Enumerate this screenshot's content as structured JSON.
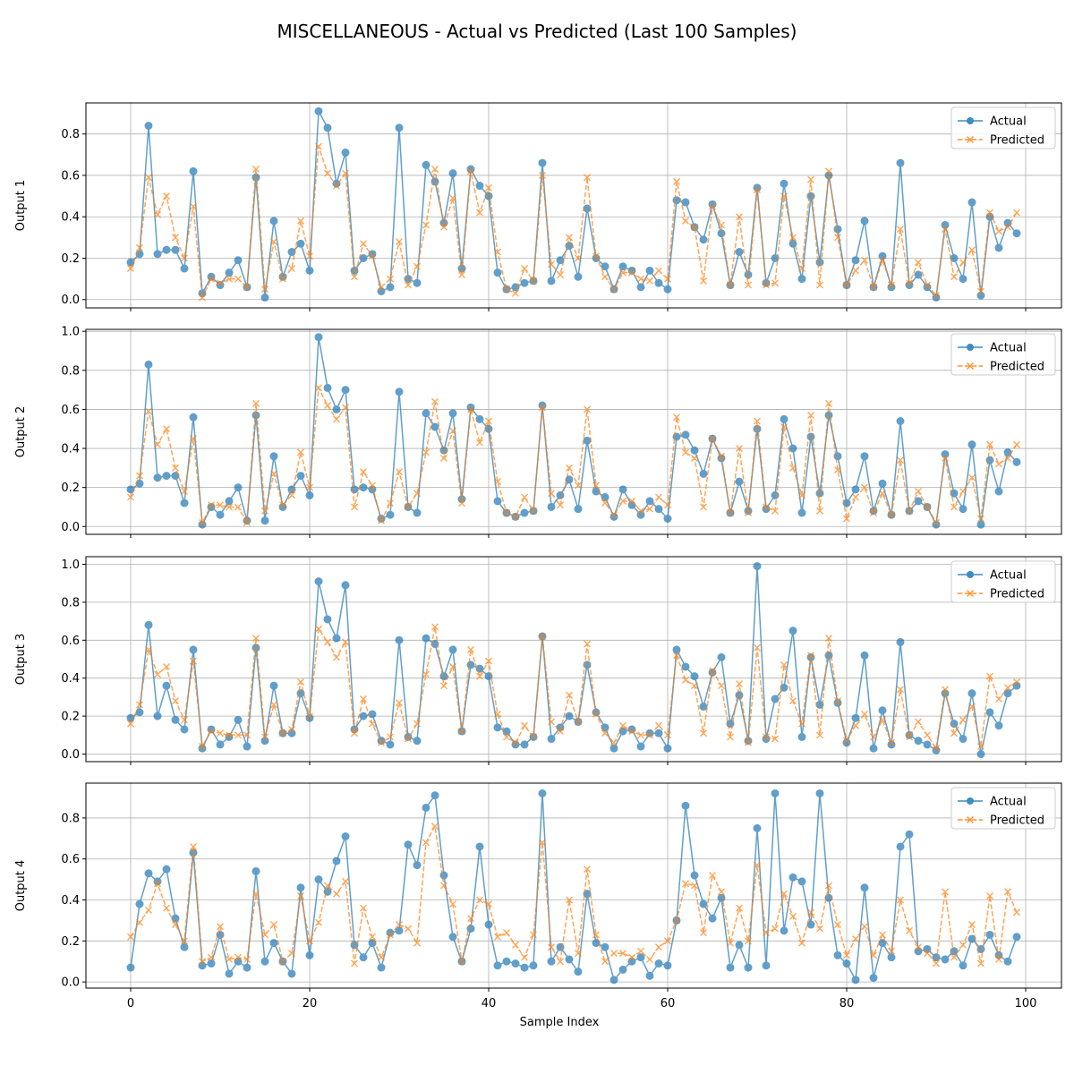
{
  "figure": {
    "title": "MISCELLANEOUS - Actual vs Predicted (Last 100 Samples)",
    "xlabel": "Sample Index",
    "colors": {
      "actual": "#1f77b4",
      "predicted": "#ff7f0e"
    }
  },
  "chart_data": [
    {
      "type": "line",
      "ylabel": "Output 1",
      "xlim": [
        -5,
        104
      ],
      "ylim": [
        -0.04,
        0.95
      ],
      "xticks": [
        0,
        20,
        40,
        60,
        80,
        100
      ],
      "yticks": [
        0.0,
        0.2,
        0.4,
        0.6,
        0.8
      ],
      "yticklabels": [
        "0.0",
        "0.2",
        "0.4",
        "0.6",
        "0.8"
      ],
      "grid": true,
      "legend": "top-right",
      "series": [
        {
          "name": "Actual",
          "marker": "circle",
          "line": "solid",
          "values": [
            0.18,
            0.22,
            0.84,
            0.22,
            0.24,
            0.24,
            0.15,
            0.62,
            0.03,
            0.11,
            0.07,
            0.13,
            0.19,
            0.06,
            0.59,
            0.01,
            0.38,
            0.11,
            0.23,
            0.27,
            0.14,
            0.91,
            0.83,
            0.56,
            0.71,
            0.14,
            0.2,
            0.22,
            0.04,
            0.06,
            0.83,
            0.1,
            0.08,
            0.65,
            0.57,
            0.37,
            0.61,
            0.15,
            0.63,
            0.55,
            0.5,
            0.13,
            0.05,
            0.06,
            0.08,
            0.09,
            0.66,
            0.09,
            0.19,
            0.26,
            0.11,
            0.44,
            0.2,
            0.16,
            0.05,
            0.16,
            0.14,
            0.06,
            0.14,
            0.08,
            0.05,
            0.48,
            0.47,
            0.35,
            0.29,
            0.46,
            0.32,
            0.07,
            0.23,
            0.12,
            0.54,
            0.08,
            0.2,
            0.56,
            0.27,
            0.1,
            0.5,
            0.18,
            0.6,
            0.34,
            0.07,
            0.19,
            0.38,
            0.06,
            0.21,
            0.06,
            0.66,
            0.07,
            0.12,
            0.06,
            0.01,
            0.36,
            0.2,
            0.1,
            0.47,
            0.02,
            0.4,
            0.25,
            0.37,
            0.32
          ]
        },
        {
          "name": "Predicted",
          "marker": "x",
          "line": "dashed",
          "values": [
            0.15,
            0.25,
            0.59,
            0.41,
            0.5,
            0.3,
            0.2,
            0.45,
            0.01,
            0.1,
            0.08,
            0.1,
            0.1,
            0.06,
            0.63,
            0.05,
            0.28,
            0.1,
            0.15,
            0.38,
            0.21,
            0.74,
            0.61,
            0.55,
            0.61,
            0.11,
            0.27,
            0.21,
            0.06,
            0.1,
            0.28,
            0.07,
            0.16,
            0.36,
            0.63,
            0.35,
            0.49,
            0.12,
            0.62,
            0.42,
            0.54,
            0.23,
            0.05,
            0.03,
            0.15,
            0.09,
            0.6,
            0.17,
            0.12,
            0.3,
            0.2,
            0.59,
            0.21,
            0.11,
            0.05,
            0.13,
            0.13,
            0.1,
            0.09,
            0.14,
            0.1,
            0.57,
            0.38,
            0.35,
            0.09,
            0.45,
            0.36,
            0.07,
            0.4,
            0.07,
            0.53,
            0.07,
            0.08,
            0.5,
            0.3,
            0.15,
            0.58,
            0.07,
            0.62,
            0.3,
            0.07,
            0.14,
            0.19,
            0.06,
            0.19,
            0.07,
            0.34,
            0.08,
            0.18,
            0.07,
            0.02,
            0.34,
            0.11,
            0.18,
            0.24,
            0.04,
            0.42,
            0.33,
            0.35,
            0.42
          ]
        }
      ]
    },
    {
      "type": "line",
      "ylabel": "Output 2",
      "xlim": [
        -5,
        104
      ],
      "ylim": [
        -0.04,
        1.01
      ],
      "xticks": [
        0,
        20,
        40,
        60,
        80,
        100
      ],
      "yticks": [
        0.0,
        0.2,
        0.4,
        0.6,
        0.8,
        1.0
      ],
      "yticklabels": [
        "0.0",
        "0.2",
        "0.4",
        "0.6",
        "0.8",
        "1.0"
      ],
      "grid": true,
      "legend": "top-right",
      "series": [
        {
          "name": "Actual",
          "marker": "circle",
          "line": "solid",
          "values": [
            0.19,
            0.22,
            0.83,
            0.25,
            0.26,
            0.26,
            0.12,
            0.56,
            0.01,
            0.1,
            0.06,
            0.13,
            0.2,
            0.03,
            0.57,
            0.03,
            0.36,
            0.1,
            0.19,
            0.26,
            0.16,
            0.97,
            0.71,
            0.6,
            0.7,
            0.19,
            0.2,
            0.19,
            0.04,
            0.06,
            0.69,
            0.1,
            0.07,
            0.58,
            0.51,
            0.39,
            0.58,
            0.14,
            0.61,
            0.55,
            0.5,
            0.13,
            0.07,
            0.05,
            0.07,
            0.08,
            0.62,
            0.1,
            0.16,
            0.24,
            0.09,
            0.44,
            0.18,
            0.15,
            0.05,
            0.19,
            0.11,
            0.06,
            0.13,
            0.09,
            0.04,
            0.46,
            0.47,
            0.39,
            0.27,
            0.45,
            0.35,
            0.07,
            0.23,
            0.08,
            0.5,
            0.09,
            0.16,
            0.55,
            0.4,
            0.07,
            0.46,
            0.17,
            0.57,
            0.36,
            0.12,
            0.19,
            0.36,
            0.08,
            0.22,
            0.06,
            0.54,
            0.08,
            0.13,
            0.1,
            0.01,
            0.37,
            0.17,
            0.09,
            0.42,
            0.01,
            0.34,
            0.18,
            0.38,
            0.33
          ]
        },
        {
          "name": "Predicted",
          "marker": "x",
          "line": "dashed",
          "values": [
            0.15,
            0.26,
            0.59,
            0.42,
            0.5,
            0.3,
            0.18,
            0.45,
            0.02,
            0.11,
            0.11,
            0.1,
            0.1,
            0.02,
            0.63,
            0.08,
            0.27,
            0.11,
            0.16,
            0.38,
            0.2,
            0.71,
            0.62,
            0.55,
            0.61,
            0.1,
            0.28,
            0.21,
            0.03,
            0.12,
            0.28,
            0.1,
            0.17,
            0.38,
            0.64,
            0.35,
            0.49,
            0.12,
            0.6,
            0.43,
            0.54,
            0.23,
            0.07,
            0.05,
            0.15,
            0.08,
            0.61,
            0.17,
            0.11,
            0.3,
            0.21,
            0.6,
            0.21,
            0.12,
            0.06,
            0.13,
            0.13,
            0.08,
            0.09,
            0.15,
            0.11,
            0.56,
            0.38,
            0.35,
            0.1,
            0.45,
            0.36,
            0.07,
            0.4,
            0.07,
            0.54,
            0.1,
            0.08,
            0.51,
            0.3,
            0.16,
            0.57,
            0.08,
            0.63,
            0.29,
            0.04,
            0.15,
            0.2,
            0.07,
            0.17,
            0.06,
            0.34,
            0.08,
            0.18,
            0.1,
            0.02,
            0.35,
            0.1,
            0.18,
            0.25,
            0.04,
            0.42,
            0.32,
            0.35,
            0.42
          ]
        }
      ]
    },
    {
      "type": "line",
      "ylabel": "Output 3",
      "xlim": [
        -5,
        104
      ],
      "ylim": [
        -0.04,
        1.04
      ],
      "xticks": [
        0,
        20,
        40,
        60,
        80,
        100
      ],
      "yticks": [
        0.0,
        0.2,
        0.4,
        0.6,
        0.8,
        1.0
      ],
      "yticklabels": [
        "0.0",
        "0.2",
        "0.4",
        "0.6",
        "0.8",
        "1.0"
      ],
      "grid": true,
      "legend": "top-right",
      "series": [
        {
          "name": "Actual",
          "marker": "circle",
          "line": "solid",
          "values": [
            0.19,
            0.22,
            0.68,
            0.2,
            0.36,
            0.18,
            0.13,
            0.55,
            0.03,
            0.13,
            0.05,
            0.09,
            0.18,
            0.04,
            0.56,
            0.07,
            0.36,
            0.11,
            0.11,
            0.32,
            0.19,
            0.91,
            0.71,
            0.61,
            0.89,
            0.13,
            0.2,
            0.21,
            0.07,
            0.05,
            0.6,
            0.09,
            0.07,
            0.61,
            0.58,
            0.41,
            0.55,
            0.12,
            0.47,
            0.45,
            0.41,
            0.14,
            0.12,
            0.05,
            0.05,
            0.09,
            0.62,
            0.08,
            0.14,
            0.2,
            0.17,
            0.47,
            0.22,
            0.14,
            0.03,
            0.12,
            0.13,
            0.04,
            0.11,
            0.11,
            0.03,
            0.55,
            0.46,
            0.41,
            0.25,
            0.43,
            0.51,
            0.16,
            0.31,
            0.07,
            0.99,
            0.08,
            0.29,
            0.35,
            0.65,
            0.09,
            0.51,
            0.26,
            0.52,
            0.27,
            0.06,
            0.19,
            0.52,
            0.03,
            0.23,
            0.05,
            0.59,
            0.1,
            0.07,
            0.05,
            0.02,
            0.32,
            0.16,
            0.08,
            0.32,
            0.0,
            0.22,
            0.15,
            0.32,
            0.36
          ]
        },
        {
          "name": "Predicted",
          "marker": "x",
          "line": "dashed",
          "values": [
            0.16,
            0.26,
            0.55,
            0.42,
            0.46,
            0.28,
            0.18,
            0.49,
            0.04,
            0.12,
            0.11,
            0.1,
            0.1,
            0.1,
            0.61,
            0.09,
            0.26,
            0.11,
            0.13,
            0.38,
            0.2,
            0.66,
            0.59,
            0.51,
            0.59,
            0.11,
            0.29,
            0.16,
            0.06,
            0.09,
            0.27,
            0.08,
            0.16,
            0.42,
            0.67,
            0.36,
            0.46,
            0.12,
            0.55,
            0.41,
            0.49,
            0.21,
            0.09,
            0.06,
            0.15,
            0.09,
            0.62,
            0.17,
            0.12,
            0.31,
            0.17,
            0.58,
            0.21,
            0.11,
            0.06,
            0.15,
            0.12,
            0.1,
            0.1,
            0.15,
            0.1,
            0.52,
            0.39,
            0.36,
            0.11,
            0.44,
            0.36,
            0.09,
            0.37,
            0.06,
            0.56,
            0.09,
            0.08,
            0.47,
            0.28,
            0.16,
            0.52,
            0.1,
            0.61,
            0.28,
            0.07,
            0.15,
            0.21,
            0.09,
            0.18,
            0.06,
            0.34,
            0.09,
            0.17,
            0.1,
            0.03,
            0.34,
            0.11,
            0.18,
            0.25,
            0.04,
            0.41,
            0.29,
            0.35,
            0.38
          ]
        }
      ]
    },
    {
      "type": "line",
      "ylabel": "Output 4",
      "xlim": [
        -5,
        104
      ],
      "ylim": [
        -0.03,
        0.97
      ],
      "xticks": [
        0,
        20,
        40,
        60,
        80,
        100
      ],
      "yticks": [
        0.0,
        0.2,
        0.4,
        0.6,
        0.8
      ],
      "yticklabels": [
        "0.0",
        "0.2",
        "0.4",
        "0.6",
        "0.8"
      ],
      "grid": true,
      "legend": "top-right",
      "series": [
        {
          "name": "Actual",
          "marker": "circle",
          "line": "solid",
          "values": [
            0.07,
            0.38,
            0.53,
            0.49,
            0.55,
            0.31,
            0.17,
            0.63,
            0.08,
            0.09,
            0.23,
            0.04,
            0.1,
            0.07,
            0.54,
            0.1,
            0.19,
            0.1,
            0.04,
            0.46,
            0.13,
            0.5,
            0.44,
            0.59,
            0.71,
            0.18,
            0.12,
            0.19,
            0.07,
            0.24,
            0.25,
            0.67,
            0.57,
            0.85,
            0.91,
            0.52,
            0.22,
            0.1,
            0.26,
            0.66,
            0.28,
            0.08,
            0.1,
            0.09,
            0.07,
            0.08,
            0.92,
            0.1,
            0.17,
            0.11,
            0.05,
            0.43,
            0.19,
            0.17,
            0.01,
            0.06,
            0.1,
            0.12,
            0.03,
            0.09,
            0.08,
            0.3,
            0.86,
            0.52,
            0.38,
            0.31,
            0.41,
            0.07,
            0.18,
            0.07,
            0.75,
            0.08,
            0.92,
            0.25,
            0.51,
            0.49,
            0.28,
            0.92,
            0.41,
            0.13,
            0.09,
            0.01,
            0.46,
            0.02,
            0.19,
            0.12,
            0.66,
            0.72,
            0.15,
            0.16,
            0.12,
            0.11,
            0.15,
            0.08,
            0.21,
            0.16,
            0.23,
            0.13,
            0.1,
            0.22
          ]
        },
        {
          "name": "Predicted",
          "marker": "x",
          "line": "dashed",
          "values": [
            0.22,
            0.29,
            0.35,
            0.48,
            0.36,
            0.28,
            0.2,
            0.66,
            0.1,
            0.12,
            0.27,
            0.11,
            0.12,
            0.11,
            0.43,
            0.23,
            0.28,
            0.1,
            0.14,
            0.42,
            0.2,
            0.29,
            0.47,
            0.43,
            0.49,
            0.09,
            0.36,
            0.22,
            0.12,
            0.23,
            0.28,
            0.26,
            0.19,
            0.68,
            0.76,
            0.47,
            0.38,
            0.1,
            0.31,
            0.4,
            0.38,
            0.22,
            0.24,
            0.18,
            0.12,
            0.23,
            0.68,
            0.17,
            0.1,
            0.4,
            0.14,
            0.55,
            0.23,
            0.1,
            0.14,
            0.14,
            0.12,
            0.15,
            0.11,
            0.17,
            0.2,
            0.3,
            0.48,
            0.47,
            0.24,
            0.52,
            0.44,
            0.19,
            0.36,
            0.2,
            0.57,
            0.24,
            0.26,
            0.43,
            0.32,
            0.19,
            0.34,
            0.26,
            0.47,
            0.28,
            0.13,
            0.21,
            0.27,
            0.13,
            0.23,
            0.15,
            0.4,
            0.25,
            0.17,
            0.14,
            0.09,
            0.44,
            0.12,
            0.18,
            0.28,
            0.09,
            0.42,
            0.11,
            0.44,
            0.34
          ]
        }
      ]
    }
  ]
}
